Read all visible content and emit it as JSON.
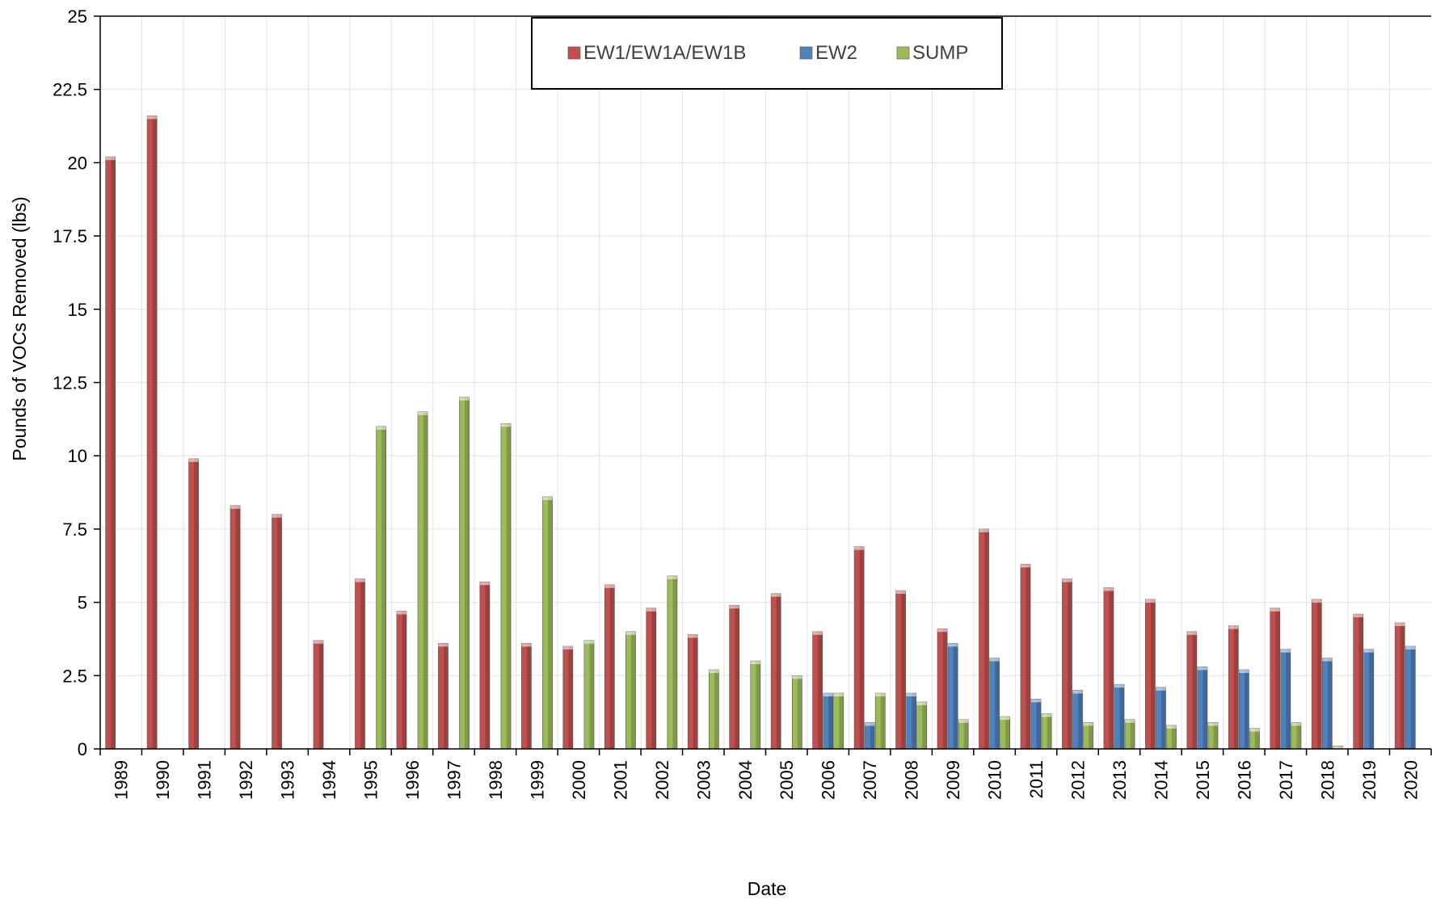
{
  "chart_data": {
    "type": "bar",
    "title": "",
    "xlabel": "Date",
    "ylabel": "Pounds of VOCs Removed (lbs)",
    "ylim": [
      0,
      25
    ],
    "yticks": [
      0,
      2.5,
      5,
      7.5,
      10,
      12.5,
      15,
      17.5,
      20,
      22.5,
      25
    ],
    "ytick_labels": [
      "0",
      "2.5",
      "5",
      "7.5",
      "10",
      "12.5",
      "15",
      "17.5",
      "20",
      "22.5",
      "25"
    ],
    "grid": true,
    "legend_position": "top-center",
    "categories": [
      "1989",
      "1990",
      "1991",
      "1992",
      "1993",
      "1994",
      "1995",
      "1996",
      "1997",
      "1998",
      "1999",
      "2000",
      "2001",
      "2002",
      "2003",
      "2004",
      "2005",
      "2006",
      "2007",
      "2008",
      "2009",
      "2010",
      "2011",
      "2012",
      "2013",
      "2014",
      "2015",
      "2016",
      "2017",
      "2018",
      "2019",
      "2020"
    ],
    "series": [
      {
        "name": "EW1/EW1A/EW1B",
        "color": "#c0504d",
        "values": [
          20.2,
          21.6,
          9.9,
          8.3,
          8.0,
          3.7,
          5.8,
          4.7,
          3.6,
          5.7,
          3.6,
          3.5,
          5.6,
          4.8,
          3.9,
          4.9,
          5.3,
          4.0,
          6.9,
          5.4,
          4.1,
          7.5,
          6.3,
          5.8,
          5.5,
          5.1,
          4.0,
          4.2,
          4.8,
          5.1,
          4.6,
          4.3
        ]
      },
      {
        "name": "EW2",
        "color": "#4f81bd",
        "values": [
          0,
          0,
          0,
          0,
          0,
          0,
          0,
          0,
          0,
          0,
          0,
          0,
          0,
          0,
          0,
          0,
          0,
          1.9,
          0.9,
          1.9,
          3.6,
          3.1,
          1.7,
          2.0,
          2.2,
          2.1,
          2.8,
          2.7,
          3.4,
          3.1,
          3.4,
          3.5
        ]
      },
      {
        "name": "SUMP",
        "color": "#9bbb59",
        "values": [
          0,
          0,
          0,
          0,
          0,
          0,
          11.0,
          11.5,
          12.0,
          11.1,
          8.6,
          3.7,
          4.0,
          5.9,
          2.7,
          3.0,
          2.5,
          1.9,
          1.9,
          1.6,
          1.0,
          1.1,
          1.2,
          0.9,
          1.0,
          0.8,
          0.9,
          0.7,
          0.9,
          0.1,
          0,
          0
        ]
      }
    ]
  }
}
